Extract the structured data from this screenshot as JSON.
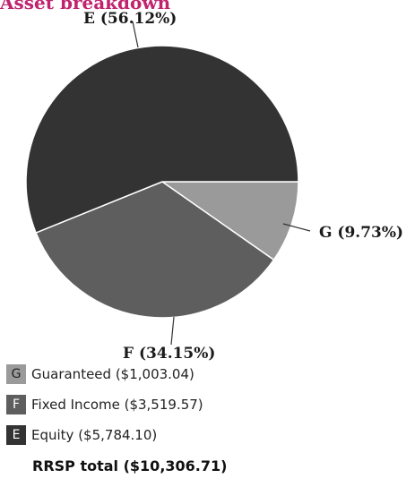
{
  "chart_data": {
    "type": "pie",
    "title": "Asset breakdown",
    "slices": [
      {
        "code": "G",
        "label": "G (9.73%)",
        "percent": 9.73,
        "color": "#9a9a9a",
        "text_color": "#222222"
      },
      {
        "code": "F",
        "label": "F (34.15%)",
        "percent": 34.15,
        "color": "#5e5e5e",
        "text_color": "#ffffff"
      },
      {
        "code": "E",
        "label": "E (56.12%)",
        "percent": 56.12,
        "color": "#333333",
        "text_color": "#ffffff"
      }
    ],
    "legend": [
      {
        "code": "G",
        "label": "Guaranteed ($1,003.04)",
        "value": 1003.04
      },
      {
        "code": "F",
        "label": "Fixed Income ($3,519.57)",
        "value": 3519.57
      },
      {
        "code": "E",
        "label": "Equity ($5,784.10)",
        "value": 5784.1
      }
    ],
    "total_label": "RRSP total ($10,306.71)",
    "total_value": 10306.71
  }
}
